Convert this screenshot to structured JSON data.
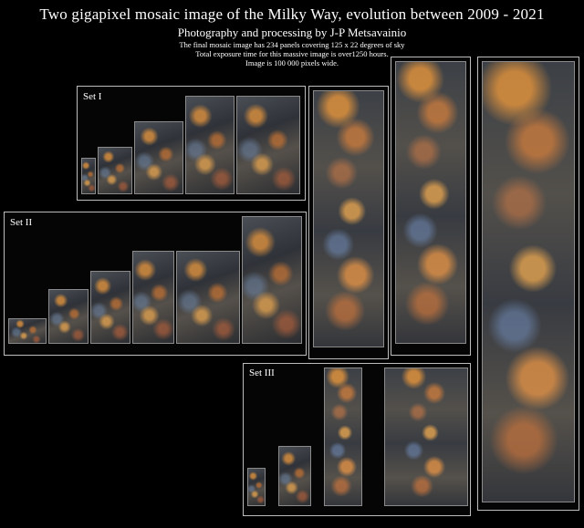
{
  "header": {
    "title": "Two gigapixel mosaic image of the Milky Way, evolution between 2009 - 2021",
    "subtitle": "Photography and processing by J-P Metsavainio",
    "notes": [
      "The final mosaic image has 234 panels covering 125 x 22 degrees of sky",
      "Total exposure time for this massive image is over1250 hours.",
      "Image is 100 000 pixels wide."
    ]
  },
  "sets": [
    {
      "label": "Set I"
    },
    {
      "label": "Set II"
    },
    {
      "label": "Set III"
    }
  ],
  "palette": {
    "background": "#000000",
    "frame": "#bdbdbd",
    "nebula_orange": "#e8963c",
    "nebula_blue": "#7896be"
  }
}
